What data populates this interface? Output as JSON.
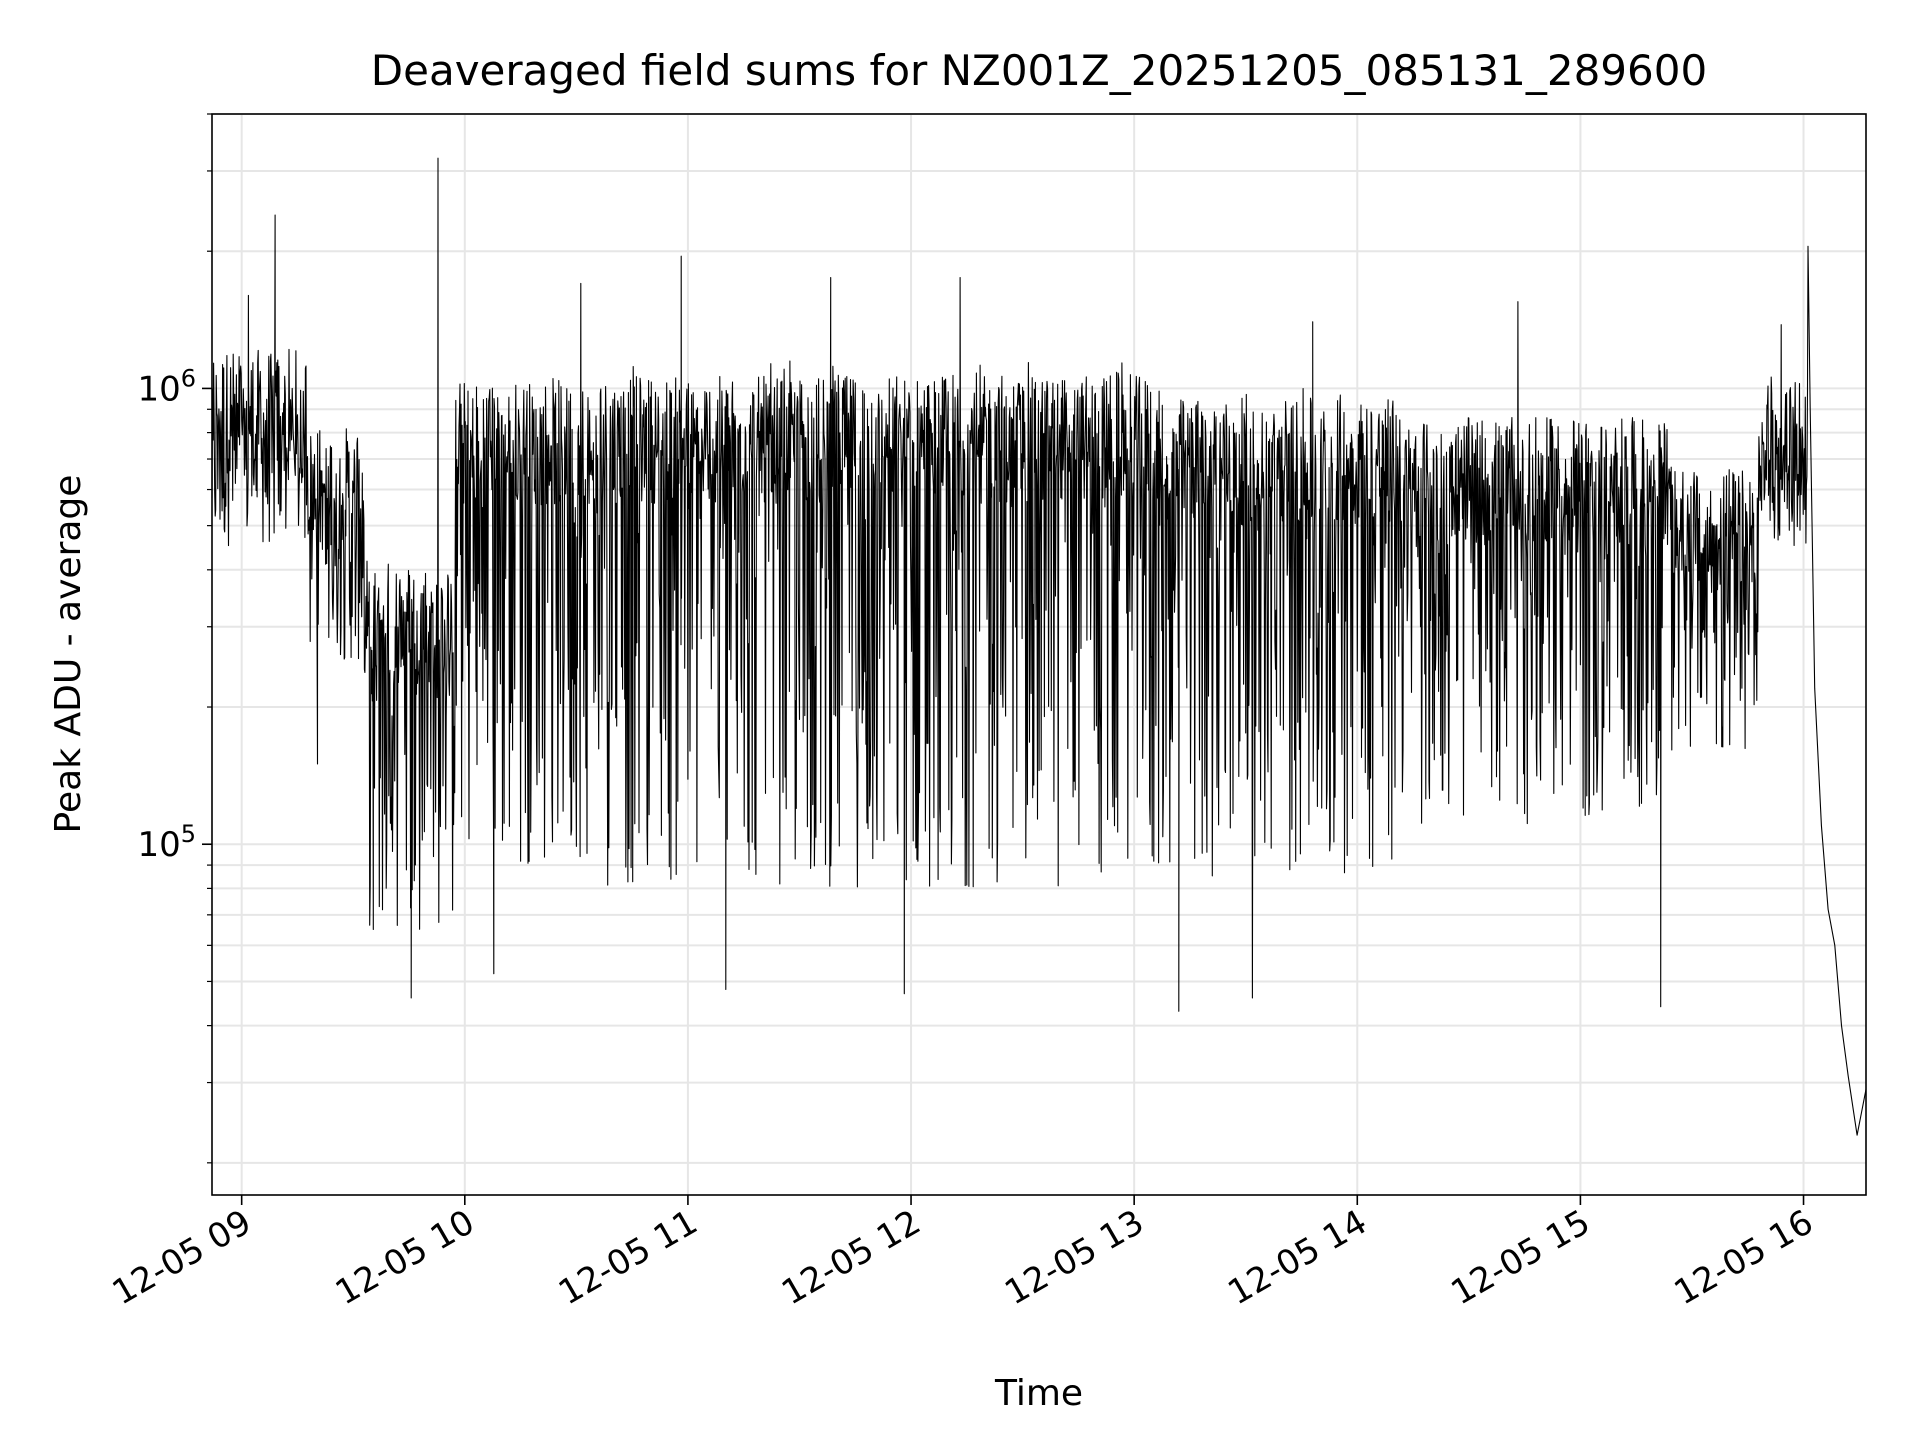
{
  "chart_data": {
    "type": "line",
    "title": "Deaveraged field sums for NZ001Z_20251205_085131_289600",
    "xlabel": "Time",
    "ylabel": "Peak ADU - average",
    "yscale": "log",
    "ylim": [
      17000,
      4000000
    ],
    "xlim_hours": [
      8.867,
      16.28
    ],
    "grid": true,
    "line_color": "#000000",
    "x_tick_labels": [
      {
        "hour": 9,
        "label": "12-05 09"
      },
      {
        "hour": 10,
        "label": "12-05 10"
      },
      {
        "hour": 11,
        "label": "12-05 11"
      },
      {
        "hour": 12,
        "label": "12-05 12"
      },
      {
        "hour": 13,
        "label": "12-05 13"
      },
      {
        "hour": 14,
        "label": "12-05 14"
      },
      {
        "hour": 15,
        "label": "12-05 15"
      },
      {
        "hour": 16,
        "label": "12-05 16"
      }
    ],
    "y_tick_labels": [
      {
        "value": 100000,
        "base": "10",
        "exp": "5"
      },
      {
        "value": 1000000,
        "base": "10",
        "exp": "6"
      }
    ],
    "series": [
      {
        "name": "Peak ADU - average",
        "segments": [
          {
            "t0": 8.867,
            "t1": 9.3,
            "upper": 1000000,
            "lower": 450000
          },
          {
            "t0": 9.3,
            "t1": 9.55,
            "upper": 700000,
            "lower": 250000
          },
          {
            "t0": 9.55,
            "t1": 9.95,
            "upper": 400000,
            "lower": 65000
          },
          {
            "t0": 9.95,
            "t1": 10.6,
            "upper": 1100000,
            "lower": 90000
          },
          {
            "t0": 10.6,
            "t1": 13.1,
            "upper": 1150000,
            "lower": 80000
          },
          {
            "t0": 13.1,
            "t1": 14.2,
            "upper": 1000000,
            "lower": 85000
          },
          {
            "t0": 14.2,
            "t1": 15.4,
            "upper": 850000,
            "lower": 110000
          },
          {
            "t0": 15.4,
            "t1": 15.8,
            "upper": 600000,
            "lower": 150000
          },
          {
            "t0": 15.8,
            "t1": 16.02,
            "upper": 850000,
            "lower": 450000
          }
        ],
        "spikes": [
          {
            "t": 9.15,
            "value": 2400000
          },
          {
            "t": 9.03,
            "value": 1600000
          },
          {
            "t": 9.34,
            "value": 150000
          },
          {
            "t": 9.59,
            "value": 65000
          },
          {
            "t": 9.76,
            "value": 46000
          },
          {
            "t": 9.88,
            "value": 3200000
          },
          {
            "t": 10.13,
            "value": 52000
          },
          {
            "t": 10.52,
            "value": 1700000
          },
          {
            "t": 10.97,
            "value": 1950000
          },
          {
            "t": 11.17,
            "value": 48000
          },
          {
            "t": 11.64,
            "value": 1750000
          },
          {
            "t": 11.97,
            "value": 47000
          },
          {
            "t": 12.22,
            "value": 1750000
          },
          {
            "t": 13.2,
            "value": 43000
          },
          {
            "t": 13.53,
            "value": 46000
          },
          {
            "t": 13.8,
            "value": 1400000
          },
          {
            "t": 14.72,
            "value": 1550000
          },
          {
            "t": 15.36,
            "value": 44000
          },
          {
            "t": 15.9,
            "value": 1380000
          }
        ],
        "tail": [
          {
            "t": 16.0,
            "value": 600000
          },
          {
            "t": 16.02,
            "value": 2050000
          },
          {
            "t": 16.03,
            "value": 900000
          },
          {
            "t": 16.05,
            "value": 220000
          },
          {
            "t": 16.08,
            "value": 110000
          },
          {
            "t": 16.11,
            "value": 72000
          },
          {
            "t": 16.14,
            "value": 60000
          },
          {
            "t": 16.17,
            "value": 40000
          },
          {
            "t": 16.2,
            "value": 31000
          },
          {
            "t": 16.24,
            "value": 23000
          },
          {
            "t": 16.28,
            "value": 29000
          }
        ]
      }
    ]
  }
}
